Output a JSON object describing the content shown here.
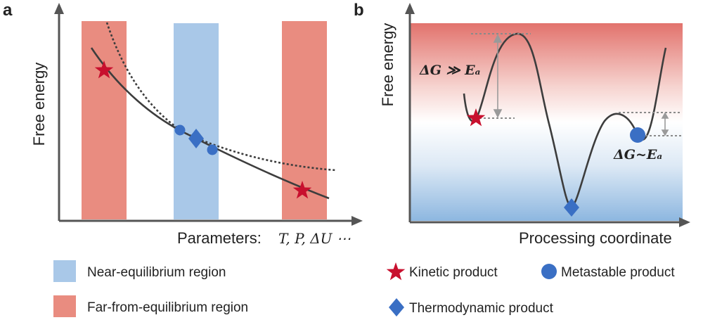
{
  "panels": [
    {
      "letter": "a",
      "ylabel": "Free energy",
      "xlabel": "Parameters:",
      "xlabel_math": "T, P, ΔU ⋯"
    },
    {
      "letter": "b",
      "ylabel": "Free energy",
      "xlabel": "Processing coordinate",
      "annotation_large": "ΔG ≫ Eₐ",
      "annotation_small": "ΔG~Eₐ"
    }
  ],
  "legend": {
    "near_equilibrium": "Near-equilibrium region",
    "far_from_equilibrium": "Far-from-equilibrium region",
    "kinetic": "Kinetic product",
    "metastable": "Metastable product",
    "thermodynamic": "Thermodynamic product"
  },
  "colors": {
    "far_region": "#e98c80",
    "near_region": "#a9c8e8",
    "star": "#c8102e",
    "blue_marker": "#3a6fc4",
    "curve": "#3d3d3d",
    "axis": "#555555"
  }
}
